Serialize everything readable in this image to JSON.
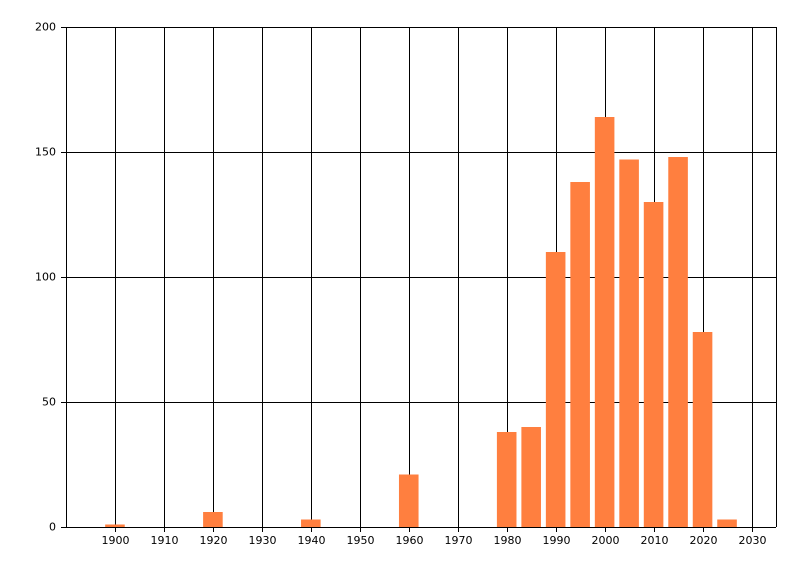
{
  "chart_data": {
    "type": "bar",
    "x": [
      1900,
      1920,
      1940,
      1960,
      1980,
      1985,
      1990,
      1995,
      2000,
      2005,
      2010,
      2015,
      2020,
      2025
    ],
    "values": [
      1,
      6,
      3,
      21,
      38,
      40,
      110,
      138,
      164,
      147,
      130,
      148,
      78,
      3
    ],
    "color": "#ff7f3f",
    "xlim": [
      1890,
      2035
    ],
    "xticks": [
      1900,
      1910,
      1920,
      1930,
      1940,
      1950,
      1960,
      1970,
      1980,
      1990,
      2000,
      2010,
      2020,
      2030
    ],
    "ylim": [
      0,
      200
    ],
    "yticks": [
      0,
      50,
      100,
      150,
      200
    ],
    "grid": true
  }
}
